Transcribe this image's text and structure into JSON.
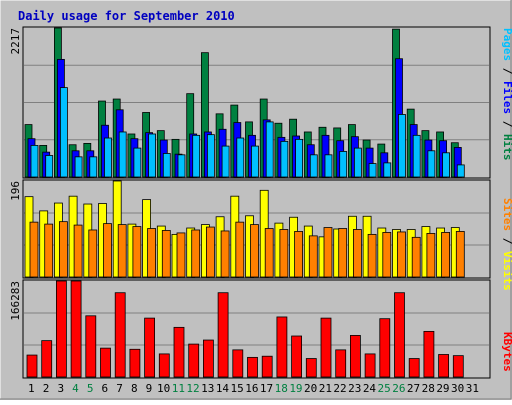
{
  "title": "Daily usage for September 2010",
  "colors": {
    "background": "#C0C0C0",
    "panel": "#C0C0C0",
    "grid": "#808080",
    "title_text": "#0000C0",
    "hits": "#008040",
    "files": "#0000FF",
    "pages": "#00C0FF",
    "visits": "#FFFF00",
    "sites": "#FF8000",
    "kbytes": "#FF0000",
    "weekend_day": "#008040",
    "weekday_day": "#000000"
  },
  "axis_labels": {
    "top": [
      "Pages",
      " / ",
      "Files",
      " / ",
      "Hits"
    ],
    "middle": [
      "Sites",
      " / ",
      "Visits"
    ],
    "bottom": [
      "KBytes"
    ]
  },
  "max_labels": {
    "top": "2217",
    "middle": "196",
    "bottom": "166283"
  },
  "chart_data": [
    {
      "type": "bar",
      "name": "hits-files-pages",
      "categories": [
        "1",
        "2",
        "3",
        "4",
        "5",
        "6",
        "7",
        "8",
        "9",
        "10",
        "11",
        "12",
        "13",
        "14",
        "15",
        "16",
        "17",
        "18",
        "19",
        "20",
        "21",
        "22",
        "23",
        "24",
        "25",
        "26",
        "27",
        "28",
        "29",
        "30",
        "31"
      ],
      "ylim": [
        0,
        2217
      ],
      "series": [
        {
          "name": "Hits",
          "values": [
            780,
            470,
            2217,
            480,
            500,
            1130,
            1160,
            640,
            960,
            690,
            560,
            1240,
            1850,
            940,
            1070,
            820,
            1160,
            800,
            860,
            670,
            740,
            730,
            780,
            550,
            490,
            2200,
            1010,
            690,
            670,
            510,
            0
          ]
        },
        {
          "name": "Files",
          "values": [
            570,
            370,
            1750,
            390,
            390,
            770,
            1000,
            570,
            660,
            550,
            340,
            640,
            670,
            710,
            810,
            620,
            850,
            590,
            610,
            480,
            620,
            540,
            600,
            430,
            360,
            1760,
            780,
            550,
            540,
            440,
            0
          ]
        },
        {
          "name": "Pages",
          "values": [
            470,
            320,
            1330,
            300,
            300,
            580,
            670,
            430,
            640,
            350,
            330,
            620,
            630,
            460,
            580,
            460,
            820,
            530,
            560,
            330,
            330,
            380,
            430,
            200,
            210,
            930,
            620,
            390,
            360,
            180,
            0
          ]
        }
      ]
    },
    {
      "type": "bar",
      "name": "visits-sites",
      "categories": [
        "1",
        "2",
        "3",
        "4",
        "5",
        "6",
        "7",
        "8",
        "9",
        "10",
        "11",
        "12",
        "13",
        "14",
        "15",
        "16",
        "17",
        "18",
        "19",
        "20",
        "21",
        "22",
        "23",
        "24",
        "25",
        "26",
        "27",
        "28",
        "29",
        "30",
        "31"
      ],
      "ylim": [
        0,
        196
      ],
      "series": [
        {
          "name": "Visits",
          "values": [
            164,
            135,
            151,
            165,
            149,
            150,
            196,
            108,
            158,
            104,
            87,
            100,
            107,
            123,
            165,
            125,
            177,
            110,
            122,
            104,
            82,
            98,
            124,
            124,
            100,
            97,
            97,
            103,
            100,
            101,
            0
          ]
        },
        {
          "name": "Sites",
          "values": [
            112,
            108,
            113,
            106,
            96,
            109,
            107,
            103,
            99,
            95,
            90,
            96,
            102,
            94,
            112,
            107,
            99,
            97,
            93,
            84,
            101,
            99,
            97,
            87,
            91,
            92,
            81,
            89,
            91,
            93,
            0
          ]
        }
      ]
    },
    {
      "type": "bar",
      "name": "kbytes",
      "categories": [
        "1",
        "2",
        "3",
        "4",
        "5",
        "6",
        "7",
        "8",
        "9",
        "10",
        "11",
        "12",
        "13",
        "14",
        "15",
        "16",
        "17",
        "18",
        "19",
        "20",
        "21",
        "22",
        "23",
        "24",
        "25",
        "26",
        "27",
        "28",
        "29",
        "30",
        "31"
      ],
      "ylim": [
        0,
        166283
      ],
      "series": [
        {
          "name": "KBytes",
          "values": [
            38000,
            63000,
            166283,
            166283,
            106000,
            50000,
            146000,
            48000,
            102000,
            40000,
            86000,
            57000,
            64000,
            146000,
            47000,
            34000,
            36000,
            104000,
            71000,
            32000,
            102000,
            47000,
            72000,
            40000,
            101000,
            146000,
            32000,
            79000,
            39000,
            37000,
            0
          ]
        }
      ]
    }
  ],
  "day_labels": [
    {
      "label": "1",
      "weekend": false
    },
    {
      "label": "2",
      "weekend": false
    },
    {
      "label": "3",
      "weekend": false
    },
    {
      "label": "4",
      "weekend": true
    },
    {
      "label": "5",
      "weekend": true
    },
    {
      "label": "6",
      "weekend": false
    },
    {
      "label": "7",
      "weekend": false
    },
    {
      "label": "8",
      "weekend": false
    },
    {
      "label": "9",
      "weekend": false
    },
    {
      "label": "10",
      "weekend": false
    },
    {
      "label": "11",
      "weekend": true
    },
    {
      "label": "12",
      "weekend": true
    },
    {
      "label": "13",
      "weekend": false
    },
    {
      "label": "14",
      "weekend": false
    },
    {
      "label": "15",
      "weekend": false
    },
    {
      "label": "16",
      "weekend": false
    },
    {
      "label": "17",
      "weekend": false
    },
    {
      "label": "18",
      "weekend": true
    },
    {
      "label": "19",
      "weekend": true
    },
    {
      "label": "20",
      "weekend": false
    },
    {
      "label": "21",
      "weekend": false
    },
    {
      "label": "22",
      "weekend": false
    },
    {
      "label": "23",
      "weekend": false
    },
    {
      "label": "24",
      "weekend": false
    },
    {
      "label": "25",
      "weekend": true
    },
    {
      "label": "26",
      "weekend": true
    },
    {
      "label": "27",
      "weekend": false
    },
    {
      "label": "28",
      "weekend": false
    },
    {
      "label": "29",
      "weekend": false
    },
    {
      "label": "30",
      "weekend": false
    },
    {
      "label": "31",
      "weekend": false
    }
  ]
}
